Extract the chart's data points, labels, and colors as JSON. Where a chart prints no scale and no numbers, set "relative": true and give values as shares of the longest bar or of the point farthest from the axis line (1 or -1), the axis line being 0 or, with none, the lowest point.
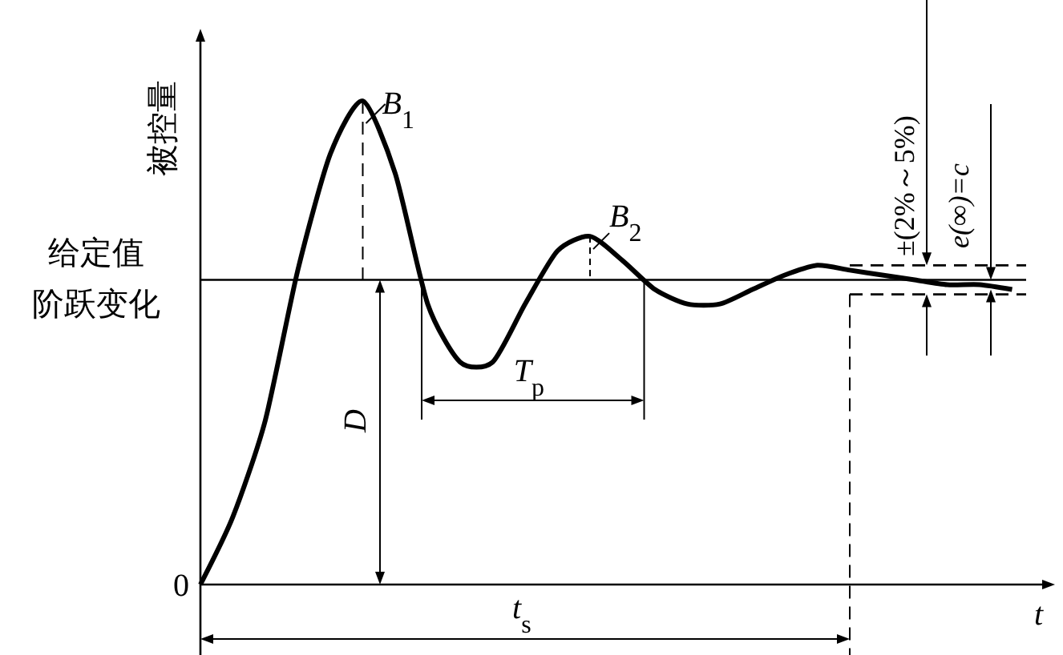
{
  "chart_data": {
    "type": "line",
    "relative": true,
    "xlabel": "t",
    "ylabel": "被控量",
    "categories": [
      null,
      null,
      null,
      null,
      null,
      null,
      null,
      null,
      null,
      null,
      null,
      null,
      null,
      null,
      null,
      null,
      null,
      null,
      null,
      null,
      null,
      null,
      null,
      null,
      null,
      null
    ],
    "series": [
      {
        "color": "#000000",
        "values": [
          0,
          0.14,
          0.34,
          0.65,
          0.89,
          1.0,
          0.85,
          0.58,
          0.46,
          0.46,
          0.58,
          0.69,
          0.72,
          0.67,
          0.61,
          0.58,
          0.58,
          0.61,
          0.64,
          0.66,
          0.65,
          0.64,
          0.63,
          0.62,
          0.62,
          0.61
        ]
      }
    ],
    "ref_lines": [
      {
        "axis": "y",
        "value": 0.63,
        "label": "给定值阶跃变化",
        "color": "#000000",
        "line_style": "solid"
      },
      {
        "axis": "y",
        "value": 0.66,
        "color": "#000000",
        "line_style": "dashed"
      },
      {
        "axis": "y",
        "value": 0.6,
        "color": "#000000",
        "line_style": "dashed"
      }
    ],
    "annotations": [
      "B$_{1}$",
      "B$_{2}$",
      "T$_{p}$",
      "D",
      "t$_{s}$",
      "0",
      "±(2%～5%)",
      "e(∞)=c"
    ],
    "line_style": "solid"
  }
}
